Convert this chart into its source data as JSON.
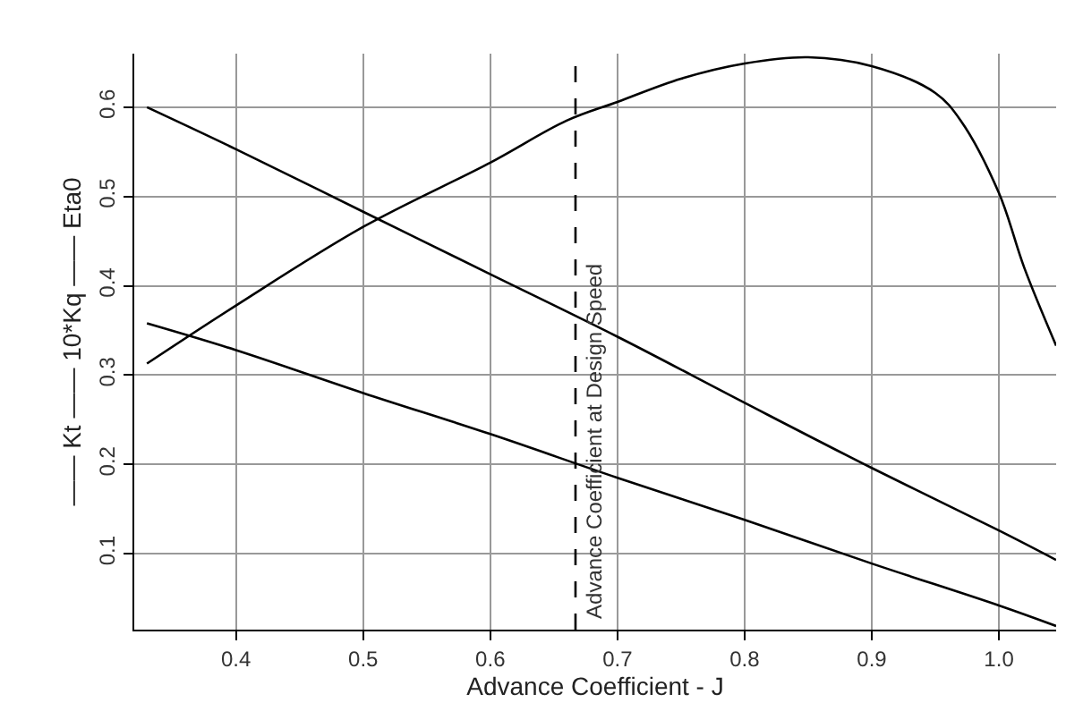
{
  "chart_data": {
    "type": "line",
    "xlabel": "Advance Coefficient - J",
    "ylabel": "—— Kt —— 10*Kq —— Eta0",
    "xlim": [
      0.32,
      1.045
    ],
    "ylim": [
      0.015,
      0.66
    ],
    "xticks": [
      0.4,
      0.5,
      0.6,
      0.7,
      0.8,
      0.9,
      {
        "value": 1.0,
        "label": "1.0"
      }
    ],
    "yticks": [
      0.1,
      0.2,
      0.3,
      0.4,
      0.5,
      0.6
    ],
    "grid": true,
    "marker": "none",
    "line_style": "solid",
    "series": [
      {
        "color": "#000000",
        "x": [
          0.33,
          0.4,
          0.5,
          0.6,
          0.7,
          0.8,
          0.9,
          1.0,
          1.045
        ],
        "values": [
          0.358,
          0.328,
          0.28,
          0.234,
          0.185,
          0.138,
          0.089,
          0.042,
          0.019
        ]
      },
      {
        "color": "#000000",
        "x": [
          0.33,
          0.4,
          0.5,
          0.6,
          0.7,
          0.8,
          0.9,
          1.0,
          1.045
        ],
        "values": [
          0.6,
          0.553,
          0.483,
          0.413,
          0.343,
          0.269,
          0.196,
          0.126,
          0.093
        ]
      },
      {
        "color": "#000000",
        "x": [
          0.33,
          0.4,
          0.5,
          0.6,
          0.66,
          0.7,
          0.75,
          0.8,
          0.85,
          0.9,
          0.95,
          0.97,
          1.0,
          1.02,
          1.045
        ],
        "values": [
          0.313,
          0.378,
          0.466,
          0.538,
          0.585,
          0.606,
          0.632,
          0.649,
          0.656,
          0.646,
          0.616,
          0.585,
          0.504,
          0.42,
          0.333
        ]
      }
    ],
    "ref_lines": [
      {
        "axis": "x",
        "value": 0.667,
        "label": "Advance Coefficient at Design Speed",
        "line_style": "dashed",
        "color": "#000000"
      }
    ]
  }
}
